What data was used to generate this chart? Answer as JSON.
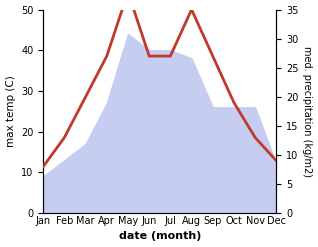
{
  "months": [
    "Jan",
    "Feb",
    "Mar",
    "Apr",
    "May",
    "Jun",
    "Jul",
    "Aug",
    "Sep",
    "Oct",
    "Nov",
    "Dec"
  ],
  "temperature": [
    8,
    13,
    20,
    27,
    38,
    27,
    27,
    35,
    27,
    19,
    13,
    9
  ],
  "precipitation": [
    9,
    13,
    17,
    27,
    44,
    40,
    40,
    38,
    26,
    26,
    26,
    12
  ],
  "temp_ylim": [
    0,
    35
  ],
  "precip_ylim": [
    0,
    50
  ],
  "temp_color": "#c0392b",
  "precip_fill_color": "#c5cef0",
  "xlabel": "date (month)",
  "ylabel_left": "max temp (C)",
  "ylabel_right": "med. precipitation (kg/m2)",
  "bg_color": "#ffffff",
  "line_width": 2.0
}
